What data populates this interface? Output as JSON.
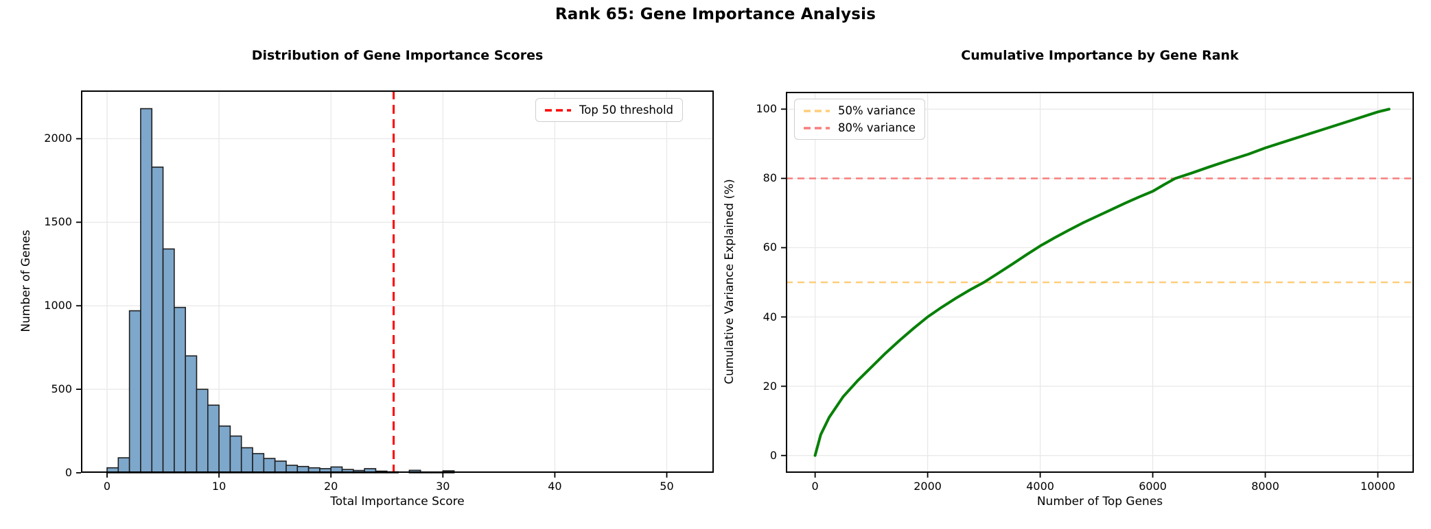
{
  "figure": {
    "title": "Rank 65: Gene Importance Analysis",
    "background_color": "#ffffff",
    "grid_color": "#e7e7e7",
    "spine_color": "#000000"
  },
  "chart_data": [
    {
      "type": "bar",
      "title": "Distribution of Gene Importance Scores",
      "xlabel": "Total Importance Score",
      "ylabel": "Number of Genes",
      "bin_start": 0,
      "bin_width": 1,
      "values": [
        30,
        90,
        970,
        2180,
        1830,
        1340,
        990,
        700,
        500,
        405,
        280,
        220,
        150,
        115,
        86,
        70,
        45,
        38,
        30,
        25,
        35,
        20,
        14,
        25,
        10,
        6,
        0,
        15,
        2,
        2,
        12
      ],
      "bar_color": "#7da7cb",
      "bar_edge_color": "#1f1f1f",
      "threshold_line": {
        "x": 25.6,
        "color": "#ff0000",
        "style": "dashed"
      },
      "legend": [
        {
          "label": "Top 50 threshold",
          "color": "#ff0000",
          "style": "dashed"
        }
      ],
      "legend_position": "top-right",
      "x_ticks": [
        0,
        10,
        20,
        30,
        40,
        50
      ],
      "y_ticks": [
        0,
        500,
        1000,
        1500,
        2000
      ],
      "xlim": [
        -2.33,
        54.2
      ],
      "ylim": [
        0,
        2289
      ],
      "grid": true
    },
    {
      "type": "line",
      "title": "Cumulative Importance by Gene Rank",
      "xlabel": "Number of Top Genes",
      "ylabel": "Cumulative Variance Explained (%)",
      "line_color": "#078007",
      "x": [
        0,
        100,
        250,
        500,
        750,
        1000,
        1250,
        1500,
        1750,
        2000,
        2250,
        2500,
        2750,
        3000,
        3250,
        3500,
        3750,
        4000,
        4250,
        4500,
        4750,
        5000,
        5250,
        5500,
        5750,
        6000,
        6200,
        6400,
        6700,
        7000,
        7350,
        7700,
        8000,
        8500,
        9000,
        9500,
        10000,
        10200
      ],
      "y": [
        0,
        6,
        11,
        17,
        21.5,
        25.5,
        29.5,
        33.2,
        36.7,
        40,
        42.8,
        45.4,
        47.8,
        50,
        52.6,
        55.2,
        57.9,
        60.5,
        62.8,
        65,
        67.1,
        69,
        70.9,
        72.8,
        74.6,
        76.3,
        78.2,
        80,
        81.6,
        83.3,
        85.2,
        87,
        88.8,
        91.4,
        94,
        96.6,
        99.2,
        100
      ],
      "ref_lines": [
        {
          "y": 50,
          "label": "50% variance",
          "color": "#ffce7a",
          "style": "dashed"
        },
        {
          "y": 80,
          "label": "80% variance",
          "color": "#f87d7d",
          "style": "dashed"
        }
      ],
      "legend": [
        {
          "label": "50% variance",
          "color": "#ffce7a",
          "style": "dashed"
        },
        {
          "label": "80% variance",
          "color": "#f87d7d",
          "style": "dashed"
        }
      ],
      "legend_position": "top-left",
      "x_ticks": [
        0,
        2000,
        4000,
        6000,
        8000,
        10000
      ],
      "y_ticks": [
        0,
        20,
        40,
        60,
        80,
        100
      ],
      "xlim": [
        -520,
        10640
      ],
      "ylim": [
        -5,
        105
      ],
      "grid": true
    }
  ]
}
